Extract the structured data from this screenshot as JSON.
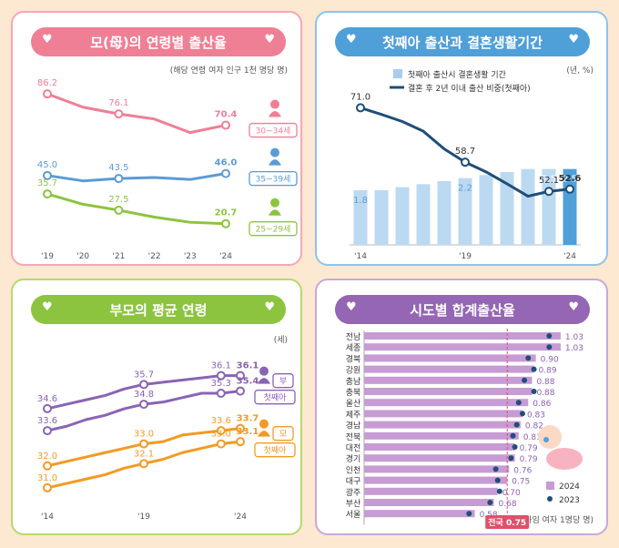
{
  "panels": {
    "p1": {
      "title": "모(母)의 연령별 출산율",
      "note": "(해당 연령 여자 인구 1천 명당 명)"
    },
    "p2": {
      "title": "첫째아 출산과 결혼생활기간",
      "note": "(년, %)"
    },
    "p3": {
      "title": "부모의 평균 연령",
      "note": "(세)"
    },
    "p4": {
      "title": "시도별 합계출산율",
      "note": "(가임 여자 1명당 명)"
    }
  },
  "icons": {
    "heart": "♥"
  },
  "chart_data": [
    {
      "type": "line",
      "title": "모(母)의 연령별 출산율",
      "x": [
        "'19",
        "'20",
        "'21",
        "'22",
        "'23",
        "'24"
      ],
      "series": [
        {
          "name": "30~34세",
          "values": [
            86.2,
            79.5,
            76.1,
            73.5,
            66.7,
            70.4
          ],
          "labels": [
            [
              0,
              "86.2"
            ],
            [
              2,
              "76.1"
            ],
            [
              5,
              "70.4"
            ]
          ],
          "color": "#ef7f95"
        },
        {
          "name": "35~39세",
          "values": [
            45.0,
            42.3,
            43.5,
            44.0,
            43.0,
            46.0
          ],
          "labels": [
            [
              0,
              "45.0"
            ],
            [
              2,
              "43.5"
            ],
            [
              5,
              "46.0"
            ]
          ],
          "color": "#5b9bd5"
        },
        {
          "name": "25~29세",
          "values": [
            35.7,
            30.5,
            27.5,
            24.0,
            21.4,
            20.7
          ],
          "labels": [
            [
              0,
              "35.7"
            ],
            [
              2,
              "27.5"
            ],
            [
              5,
              "20.7"
            ]
          ],
          "color": "#8cc43f"
        }
      ],
      "ylim": [
        10,
        95
      ]
    },
    {
      "type": "bar",
      "title": "첫째아 출산과 결혼생활기간",
      "legend": [
        "첫째아 출산시 결혼생활 기간",
        "결혼 후 2년 이내 출산 비중(첫째아)"
      ],
      "x": [
        "'14",
        "'15",
        "'16",
        "'17",
        "'18",
        "'19",
        "'20",
        "'21",
        "'22",
        "'23",
        "'24"
      ],
      "x_ticks": [
        [
          0,
          "'14"
        ],
        [
          5,
          "'19"
        ],
        [
          10,
          "'24"
        ]
      ],
      "bar_values": [
        1.8,
        1.8,
        1.9,
        2.0,
        2.1,
        2.2,
        2.3,
        2.4,
        2.5,
        2.5,
        2.5
      ],
      "bar_labels": [
        [
          0,
          "1.8"
        ],
        [
          5,
          "2.2"
        ],
        [
          9,
          "2.5"
        ],
        [
          10,
          "2.5"
        ]
      ],
      "line_values": [
        71.0,
        69.5,
        67.9,
        65.7,
        61.7,
        58.7,
        56.5,
        53.8,
        51.0,
        52.1,
        52.6
      ],
      "line_labels": [
        [
          0,
          "71.0"
        ],
        [
          5,
          "58.7"
        ],
        [
          9,
          "52.1"
        ],
        [
          10,
          "52.6"
        ]
      ],
      "line_ylim": [
        40,
        75
      ]
    },
    {
      "type": "line",
      "title": "부모의 평균 연령",
      "x": [
        "'14",
        "'15",
        "'16",
        "'17",
        "'18",
        "'19",
        "'20",
        "'21",
        "'22",
        "'23",
        "'24"
      ],
      "x_ticks": [
        [
          0,
          "'14"
        ],
        [
          5,
          "'19"
        ],
        [
          10,
          "'24"
        ]
      ],
      "groups": [
        {
          "name": "부",
          "color": "#8a63b5",
          "series": [
            {
              "name": "부",
              "values": [
                34.6,
                34.8,
                35.0,
                35.2,
                35.5,
                35.7,
                35.8,
                35.9,
                36.0,
                36.1,
                36.1
              ],
              "labels": [
                [
                  0,
                  "34.6"
                ],
                [
                  5,
                  "35.7"
                ],
                [
                  9,
                  "36.1"
                ],
                [
                  10,
                  "36.1"
                ]
              ]
            },
            {
              "name": "첫째아",
              "values": [
                33.6,
                33.8,
                34.1,
                34.3,
                34.6,
                34.8,
                34.9,
                35.1,
                35.3,
                35.3,
                35.4
              ],
              "labels": [
                [
                  0,
                  "33.6"
                ],
                [
                  5,
                  "34.8"
                ],
                [
                  9,
                  "35.3"
                ],
                [
                  10,
                  "35.4"
                ]
              ]
            }
          ]
        },
        {
          "name": "모",
          "color": "#f39a24",
          "series": [
            {
              "name": "모",
              "values": [
                32.0,
                32.2,
                32.4,
                32.6,
                32.8,
                33.0,
                33.1,
                33.4,
                33.5,
                33.6,
                33.7
              ],
              "labels": [
                [
                  0,
                  "32.0"
                ],
                [
                  5,
                  "33.0"
                ],
                [
                  9,
                  "33.6"
                ],
                [
                  10,
                  "33.7"
                ]
              ]
            },
            {
              "name": "첫째아",
              "values": [
                31.0,
                31.2,
                31.4,
                31.6,
                31.9,
                32.1,
                32.3,
                32.6,
                32.8,
                33.0,
                33.1
              ],
              "labels": [
                [
                  0,
                  "31.0"
                ],
                [
                  5,
                  "32.1"
                ],
                [
                  9,
                  "33.0"
                ],
                [
                  10,
                  "33.1"
                ]
              ]
            }
          ]
        }
      ]
    },
    {
      "type": "bar",
      "orientation": "horizontal",
      "title": "시도별 합계출산율",
      "categories": [
        "전남",
        "세종",
        "경북",
        "강원",
        "충남",
        "충북",
        "울산",
        "제주",
        "경남",
        "전북",
        "대전",
        "경기",
        "인천",
        "대구",
        "광주",
        "부산",
        "서울"
      ],
      "values_2024": [
        1.03,
        1.03,
        0.9,
        0.89,
        0.88,
        0.88,
        0.86,
        0.83,
        0.82,
        0.81,
        0.79,
        0.79,
        0.76,
        0.75,
        0.7,
        0.68,
        0.58
      ],
      "values_2023": [
        0.97,
        0.97,
        0.86,
        0.89,
        0.84,
        0.89,
        0.81,
        0.83,
        0.8,
        0.78,
        0.79,
        0.77,
        0.69,
        0.7,
        0.71,
        0.66,
        0.55
      ],
      "legend": [
        "2024",
        "2023"
      ],
      "national_label": "전국 0.75",
      "national_value": 0.75,
      "xlim": [
        0,
        1.1
      ]
    }
  ]
}
